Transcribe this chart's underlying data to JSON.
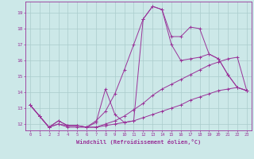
{
  "xlabel": "Windchill (Refroidissement éolien,°C)",
  "bg_color": "#cce8e8",
  "grid_color": "#aacccc",
  "line_color": "#993399",
  "x_ticks": [
    0,
    1,
    2,
    3,
    4,
    5,
    6,
    7,
    8,
    9,
    10,
    11,
    12,
    13,
    14,
    15,
    16,
    17,
    18,
    19,
    20,
    21,
    22,
    23
  ],
  "y_ticks": [
    12,
    13,
    14,
    15,
    16,
    17,
    18,
    19
  ],
  "xlim": [
    -0.5,
    23.5
  ],
  "ylim": [
    11.6,
    19.7
  ],
  "series": [
    [
      13.2,
      12.5,
      11.8,
      12.2,
      11.9,
      11.9,
      11.8,
      12.1,
      14.2,
      12.6,
      12.1,
      12.2,
      18.6,
      19.4,
      19.2,
      17.5,
      17.5,
      18.1,
      18.0,
      16.4,
      16.1,
      15.1,
      14.3,
      14.1
    ],
    [
      13.2,
      12.5,
      11.8,
      12.2,
      11.9,
      11.9,
      11.8,
      12.2,
      12.8,
      13.9,
      15.4,
      17.0,
      18.6,
      19.4,
      19.2,
      17.0,
      16.0,
      16.1,
      16.2,
      16.4,
      16.1,
      15.1,
      14.3,
      14.1
    ],
    [
      13.2,
      12.5,
      11.8,
      12.0,
      11.9,
      11.9,
      11.8,
      11.8,
      12.0,
      12.2,
      12.5,
      12.9,
      13.3,
      13.8,
      14.2,
      14.5,
      14.8,
      15.1,
      15.4,
      15.7,
      15.9,
      16.1,
      16.2,
      14.1
    ],
    [
      13.2,
      12.5,
      11.8,
      12.0,
      11.8,
      11.8,
      11.8,
      11.8,
      11.9,
      12.0,
      12.1,
      12.2,
      12.4,
      12.6,
      12.8,
      13.0,
      13.2,
      13.5,
      13.7,
      13.9,
      14.1,
      14.2,
      14.3,
      14.1
    ]
  ]
}
